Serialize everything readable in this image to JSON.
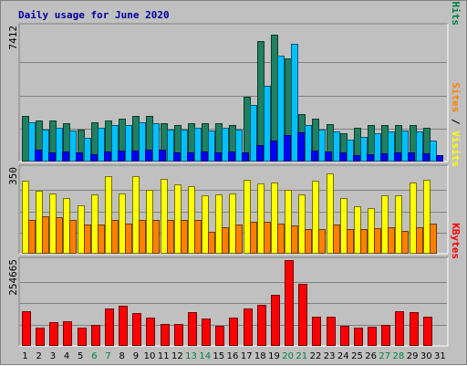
{
  "chart_data": {
    "type": "bar",
    "title": "Daily usage for June 2020",
    "categories": [
      "1",
      "2",
      "3",
      "4",
      "5",
      "6",
      "7",
      "8",
      "9",
      "10",
      "11",
      "12",
      "13",
      "14",
      "15",
      "16",
      "17",
      "18",
      "19",
      "20",
      "21",
      "22",
      "23",
      "24",
      "25",
      "26",
      "27",
      "28",
      "29",
      "30",
      "31"
    ],
    "weekend_days": [
      "6",
      "7",
      "13",
      "14",
      "20",
      "21",
      "27",
      "28"
    ],
    "panels": [
      {
        "id": "hits_files_pages",
        "ymax_label": "7412",
        "ylim": [
          0,
          7412
        ],
        "right_label": [
          {
            "text": "Pages",
            "color": "#00c0ff"
          },
          {
            "text": " / ",
            "color": "#000000"
          },
          {
            "text": "Files",
            "color": "#0000ff"
          },
          {
            "text": " / ",
            "color": "#000000"
          },
          {
            "text": "Hits",
            "color": "#008040"
          }
        ],
        "series": [
          {
            "name": "Hits",
            "color": "#208060",
            "values": [
              2540,
              2290,
              2290,
              2130,
              1800,
              2220,
              2290,
              2380,
              2560,
              2540,
              2160,
              2060,
              2160,
              2130,
              2160,
              2060,
              3640,
              6760,
              7120,
              5790,
              2640,
              2390,
              2090,
              1590,
              1900,
              2060,
              2030,
              2060,
              2060,
              1890,
              null
            ]
          },
          {
            "name": "Files",
            "color": "#00c0ff",
            "values": [
              2200,
              1770,
              1900,
              1740,
              1350,
              1900,
              2060,
              2060,
              2200,
              2130,
              1800,
              1770,
              1870,
              1740,
              1870,
              1770,
              3160,
              4240,
              5930,
              6600,
              2030,
              1800,
              1710,
              1220,
              1380,
              1580,
              1690,
              1740,
              1690,
              1200,
              null
            ]
          },
          {
            "name": "Pages",
            "color": "#0000ff",
            "values": [
              660,
              530,
              560,
              500,
              400,
              560,
              590,
              620,
              690,
              650,
              530,
              500,
              560,
              530,
              560,
              530,
              910,
              1160,
              1480,
              1650,
              620,
              560,
              500,
              340,
              400,
              470,
              500,
              500,
              470,
              350,
              null
            ]
          }
        ]
      },
      {
        "id": "visits_sites",
        "ymax_label": "350",
        "ylim": [
          0,
          350
        ],
        "right_label": [
          {
            "text": "Sites",
            "color": "#ff8000"
          },
          {
            "text": " / ",
            "color": "#000000"
          },
          {
            "text": "Visits",
            "color": "#ffff00"
          }
        ],
        "series": [
          {
            "name": "Visits",
            "color": "#ffff00",
            "values": [
              300,
              260,
              250,
              230,
              200,
              245,
              320,
              250,
              320,
              265,
              310,
              285,
              280,
              240,
              245,
              250,
              305,
              290,
              295,
              265,
              245,
              300,
              330,
              230,
              195,
              190,
              240,
              240,
              295,
              305,
              null
            ]
          },
          {
            "name": "Sites",
            "color": "#ff8000",
            "values": [
              140,
              155,
              150,
              140,
              120,
              120,
              140,
              125,
              140,
              140,
              140,
              140,
              140,
              90,
              110,
              120,
              130,
              130,
              125,
              115,
              100,
              100,
              120,
              100,
              100,
              105,
              110,
              95,
              110,
              125,
              null
            ]
          }
        ]
      },
      {
        "id": "kbytes",
        "ymax_label": "254665",
        "ylim": [
          0,
          254665
        ],
        "right_label": [
          {
            "text": "KBytes",
            "color": "#ff0000"
          }
        ],
        "series": [
          {
            "name": "KBytes",
            "color": "#ff0000",
            "values": [
              103000,
              54000,
              70000,
              74000,
              53000,
              62000,
              112000,
              118000,
              97000,
              85000,
              66000,
              65000,
              100000,
              81000,
              60000,
              85000,
              111000,
              123000,
              151000,
              254665,
              183000,
              87000,
              88000,
              60000,
              53000,
              58000,
              63000,
              102000,
              100000,
              87000,
              null
            ]
          }
        ]
      }
    ],
    "grid": true,
    "legend_placement": "right"
  }
}
